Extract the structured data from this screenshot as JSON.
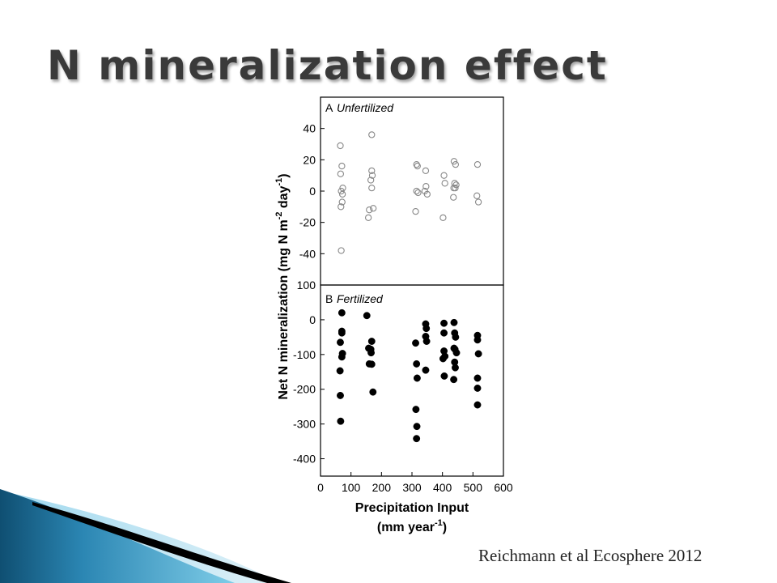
{
  "slide": {
    "title": "N mineralization effect",
    "citation": "Reichmann et al Ecosphere 2012"
  },
  "colors": {
    "title": "#3a3a3a",
    "swoosh_dark": "#0f4f72",
    "swoosh_light": "#5bb5d8",
    "black_stroke": "#000000",
    "open_marker": "#888888",
    "filled_marker": "#000000"
  },
  "chart_data": {
    "type": "scatter",
    "ylabel_text": "Net N mineralization (mg N m",
    "ylabel_sup1": "-2",
    "ylabel_mid": " day",
    "ylabel_sup2": "-1",
    "ylabel_end": ")",
    "xlabel_line1": "Precipitation Input",
    "xlabel_line2": "(mm year",
    "xlabel_sup": "-1",
    "xlabel_end": ")",
    "xlim": [
      0,
      600
    ],
    "x_ticks": [
      0,
      100,
      200,
      300,
      400,
      500,
      600
    ],
    "grid": false,
    "legend": "none",
    "panels": [
      {
        "letter": "A",
        "label": "Unfertilized",
        "marker": "open",
        "ylim": [
          -60,
          60
        ],
        "y_ticks": [
          40,
          20,
          0,
          -20,
          -40
        ],
        "points": [
          [
            65,
            29
          ],
          [
            66,
            11
          ],
          [
            70,
            16
          ],
          [
            68,
            0
          ],
          [
            73,
            2
          ],
          [
            72,
            -2
          ],
          [
            67,
            -10
          ],
          [
            71,
            -7
          ],
          [
            68,
            -38
          ],
          [
            160,
            -12
          ],
          [
            157,
            -17
          ],
          [
            168,
            36
          ],
          [
            168,
            13
          ],
          [
            170,
            10
          ],
          [
            165,
            7
          ],
          [
            168,
            2
          ],
          [
            173,
            -11
          ],
          [
            315,
            17
          ],
          [
            318,
            16
          ],
          [
            315,
            0
          ],
          [
            320,
            -1
          ],
          [
            312,
            -13
          ],
          [
            345,
            13
          ],
          [
            346,
            3
          ],
          [
            342,
            0
          ],
          [
            350,
            -2
          ],
          [
            405,
            10
          ],
          [
            408,
            5
          ],
          [
            402,
            -17
          ],
          [
            438,
            19
          ],
          [
            443,
            17
          ],
          [
            440,
            5
          ],
          [
            445,
            4
          ],
          [
            437,
            2
          ],
          [
            442,
            2
          ],
          [
            436,
            -4
          ],
          [
            515,
            17
          ],
          [
            513,
            -3
          ],
          [
            518,
            -7
          ]
        ]
      },
      {
        "letter": "B",
        "label": "Fertilized",
        "marker": "filled",
        "ylim": [
          -450,
          100
        ],
        "y_ticks": [
          100,
          0,
          -100,
          -200,
          -300,
          -400
        ],
        "points": [
          [
            70,
            20
          ],
          [
            70,
            -33
          ],
          [
            70,
            -38
          ],
          [
            65,
            -65
          ],
          [
            72,
            -97
          ],
          [
            70,
            -107
          ],
          [
            64,
            -147
          ],
          [
            65,
            -218
          ],
          [
            66,
            -292
          ],
          [
            152,
            12
          ],
          [
            158,
            -82
          ],
          [
            165,
            -85
          ],
          [
            168,
            -62
          ],
          [
            166,
            -95
          ],
          [
            160,
            -127
          ],
          [
            168,
            -128
          ],
          [
            172,
            -208
          ],
          [
            312,
            -67
          ],
          [
            315,
            -127
          ],
          [
            317,
            -168
          ],
          [
            313,
            -258
          ],
          [
            316,
            -307
          ],
          [
            315,
            -342
          ],
          [
            345,
            -12
          ],
          [
            347,
            -25
          ],
          [
            345,
            -48
          ],
          [
            348,
            -62
          ],
          [
            345,
            -145
          ],
          [
            405,
            -10
          ],
          [
            405,
            -38
          ],
          [
            405,
            -90
          ],
          [
            408,
            -105
          ],
          [
            402,
            -112
          ],
          [
            406,
            -162
          ],
          [
            438,
            -8
          ],
          [
            440,
            -38
          ],
          [
            443,
            -50
          ],
          [
            438,
            -82
          ],
          [
            441,
            -85
          ],
          [
            446,
            -95
          ],
          [
            440,
            -122
          ],
          [
            442,
            -138
          ],
          [
            437,
            -172
          ],
          [
            515,
            -45
          ],
          [
            515,
            -58
          ],
          [
            518,
            -98
          ],
          [
            515,
            -168
          ],
          [
            515,
            -197
          ],
          [
            515,
            -245
          ]
        ]
      }
    ]
  }
}
